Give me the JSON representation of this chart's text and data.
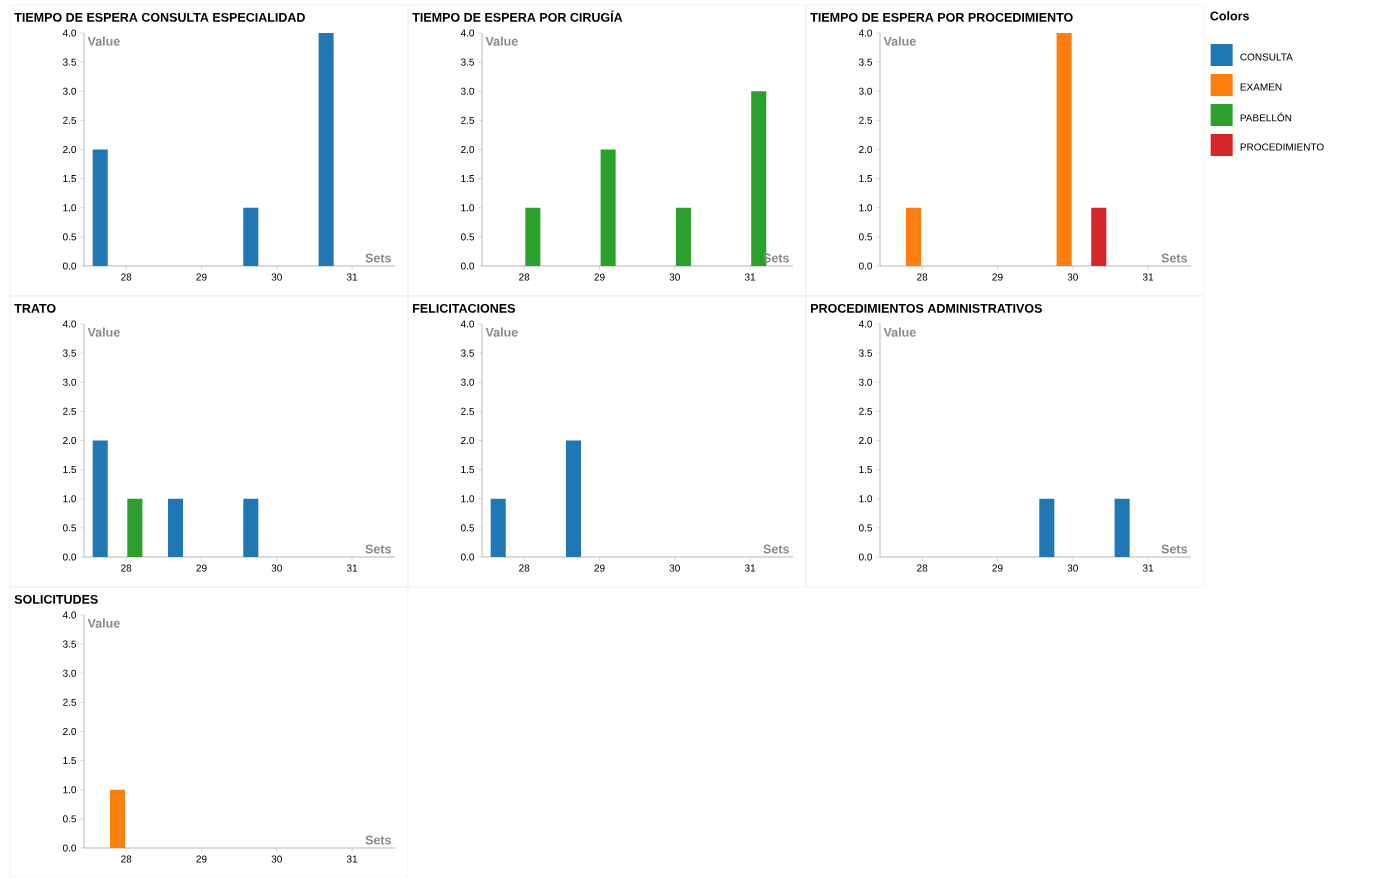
{
  "chart_data": [
    {
      "type": "bar",
      "title": "TIEMPO DE ESPERA CONSULTA ESPECIALIDAD",
      "xlabel": "Sets",
      "ylabel": "Value",
      "categories": [
        "28",
        "29",
        "30",
        "31"
      ],
      "ylim": [
        0,
        4
      ],
      "yticks": [
        {
          "value": 0,
          "label": "0.0"
        },
        {
          "value": 0.5,
          "label": "0.5"
        },
        {
          "value": 1,
          "label": "1.0"
        },
        {
          "value": 1.5,
          "label": "1.5"
        },
        {
          "value": 2,
          "label": "2.0"
        },
        {
          "value": 2.5,
          "label": "2.5"
        },
        {
          "value": 3,
          "label": "3.0"
        },
        {
          "value": 3.5,
          "label": "3.5"
        },
        {
          "value": 4,
          "label": "4.0"
        }
      ],
      "series": [
        {
          "color": "#1f77b4",
          "values": [
            2,
            null,
            1,
            4
          ]
        },
        {
          "color": "#ff7f0e",
          "values": [
            null,
            null,
            null,
            null
          ]
        },
        {
          "color": "#2ca02c",
          "values": [
            null,
            null,
            null,
            null
          ]
        },
        {
          "color": "#d62728",
          "values": [
            null,
            null,
            null,
            null
          ]
        }
      ]
    },
    {
      "type": "bar",
      "title": "TIEMPO DE ESPERA POR CIRUGÍA",
      "xlabel": "Sets",
      "ylabel": "Value",
      "categories": [
        "28",
        "29",
        "30",
        "31"
      ],
      "ylim": [
        0,
        4
      ],
      "yticks": [
        {
          "value": 0,
          "label": "0.0"
        },
        {
          "value": 0.5,
          "label": "0.5"
        },
        {
          "value": 1,
          "label": "1.0"
        },
        {
          "value": 1.5,
          "label": "1.5"
        },
        {
          "value": 2,
          "label": "2.0"
        },
        {
          "value": 2.5,
          "label": "2.5"
        },
        {
          "value": 3,
          "label": "3.0"
        },
        {
          "value": 3.5,
          "label": "3.5"
        },
        {
          "value": 4,
          "label": "4.0"
        }
      ],
      "series": [
        {
          "color": "#1f77b4",
          "values": [
            null,
            null,
            null,
            null
          ]
        },
        {
          "color": "#ff7f0e",
          "values": [
            null,
            null,
            null,
            null
          ]
        },
        {
          "color": "#2ca02c",
          "values": [
            1,
            2,
            1,
            3
          ]
        },
        {
          "color": "#d62728",
          "values": [
            null,
            null,
            null,
            null
          ]
        }
      ]
    },
    {
      "type": "bar",
      "title": "TIEMPO DE ESPERA POR PROCEDIMIENTO",
      "xlabel": "Sets",
      "ylabel": "Value",
      "categories": [
        "28",
        "29",
        "30",
        "31"
      ],
      "ylim": [
        0,
        4
      ],
      "yticks": [
        {
          "value": 0,
          "label": "0.0"
        },
        {
          "value": 0.5,
          "label": "0.5"
        },
        {
          "value": 1,
          "label": "1.0"
        },
        {
          "value": 1.5,
          "label": "1.5"
        },
        {
          "value": 2,
          "label": "2.0"
        },
        {
          "value": 2.5,
          "label": "2.5"
        },
        {
          "value": 3,
          "label": "3.0"
        },
        {
          "value": 3.5,
          "label": "3.5"
        },
        {
          "value": 4,
          "label": "4.0"
        }
      ],
      "legend": "right",
      "legend_title": "Colors",
      "series": [
        {
          "name": "CONSULTA",
          "color": "#1f77b4",
          "values": [
            null,
            null,
            null,
            null
          ]
        },
        {
          "name": "EXAMEN",
          "color": "#ff7f0e",
          "values": [
            1,
            null,
            4,
            null
          ]
        },
        {
          "name": "PABELLÓN",
          "color": "#2ca02c",
          "values": [
            null,
            null,
            null,
            null
          ]
        },
        {
          "name": "PROCEDIMIENTO",
          "color": "#d62728",
          "values": [
            null,
            null,
            1,
            null
          ]
        }
      ]
    },
    {
      "type": "bar",
      "title": "TRATO",
      "xlabel": "Sets",
      "ylabel": "Value",
      "categories": [
        "28",
        "29",
        "30",
        "31"
      ],
      "ylim": [
        0,
        4
      ],
      "yticks": [
        {
          "value": 0,
          "label": "0.0"
        },
        {
          "value": 0.5,
          "label": "0.5"
        },
        {
          "value": 1,
          "label": "1.0"
        },
        {
          "value": 1.5,
          "label": "1.5"
        },
        {
          "value": 2,
          "label": "2.0"
        },
        {
          "value": 2.5,
          "label": "2.5"
        },
        {
          "value": 3,
          "label": "3.0"
        },
        {
          "value": 3.5,
          "label": "3.5"
        },
        {
          "value": 4,
          "label": "4.0"
        }
      ],
      "series": [
        {
          "color": "#1f77b4",
          "values": [
            2,
            1,
            1,
            null
          ]
        },
        {
          "color": "#ff7f0e",
          "values": [
            null,
            null,
            null,
            null
          ]
        },
        {
          "color": "#2ca02c",
          "values": [
            1,
            null,
            null,
            null
          ]
        },
        {
          "color": "#d62728",
          "values": [
            null,
            null,
            null,
            null
          ]
        }
      ]
    },
    {
      "type": "bar",
      "title": "FELICITACIONES",
      "xlabel": "Sets",
      "ylabel": "Value",
      "categories": [
        "28",
        "29",
        "30",
        "31"
      ],
      "ylim": [
        0,
        4
      ],
      "yticks": [
        {
          "value": 0,
          "label": "0.0"
        },
        {
          "value": 0.5,
          "label": "0.5"
        },
        {
          "value": 1,
          "label": "1.0"
        },
        {
          "value": 1.5,
          "label": "1.5"
        },
        {
          "value": 2,
          "label": "2.0"
        },
        {
          "value": 2.5,
          "label": "2.5"
        },
        {
          "value": 3,
          "label": "3.0"
        },
        {
          "value": 3.5,
          "label": "3.5"
        },
        {
          "value": 4,
          "label": "4.0"
        }
      ],
      "series": [
        {
          "color": "#1f77b4",
          "values": [
            1,
            2,
            null,
            null
          ]
        },
        {
          "color": "#ff7f0e",
          "values": [
            null,
            null,
            null,
            null
          ]
        },
        {
          "color": "#2ca02c",
          "values": [
            null,
            null,
            null,
            null
          ]
        },
        {
          "color": "#d62728",
          "values": [
            null,
            null,
            null,
            null
          ]
        }
      ]
    },
    {
      "type": "bar",
      "title": "PROCEDIMIENTOS ADMINISTRATIVOS",
      "xlabel": "Sets",
      "ylabel": "Value",
      "categories": [
        "28",
        "29",
        "30",
        "31"
      ],
      "ylim": [
        0,
        4
      ],
      "yticks": [
        {
          "value": 0,
          "label": "0.0"
        },
        {
          "value": 0.5,
          "label": "0.5"
        },
        {
          "value": 1,
          "label": "1.0"
        },
        {
          "value": 1.5,
          "label": "1.5"
        },
        {
          "value": 2,
          "label": "2.0"
        },
        {
          "value": 2.5,
          "label": "2.5"
        },
        {
          "value": 3,
          "label": "3.0"
        },
        {
          "value": 3.5,
          "label": "3.5"
        },
        {
          "value": 4,
          "label": "4.0"
        }
      ],
      "series": [
        {
          "color": "#1f77b4",
          "values": [
            null,
            null,
            1,
            1
          ]
        },
        {
          "color": "#ff7f0e",
          "values": [
            null,
            null,
            null,
            null
          ]
        },
        {
          "color": "#2ca02c",
          "values": [
            null,
            null,
            null,
            null
          ]
        },
        {
          "color": "#d62728",
          "values": [
            null,
            null,
            null,
            null
          ]
        }
      ]
    },
    {
      "type": "bar",
      "title": "SOLICITUDES",
      "xlabel": "Sets",
      "ylabel": "Value",
      "categories": [
        "28",
        "29",
        "30",
        "31"
      ],
      "ylim": [
        0,
        4
      ],
      "yticks": [
        {
          "value": 0,
          "label": "0.0"
        },
        {
          "value": 0.5,
          "label": "0.5"
        },
        {
          "value": 1,
          "label": "1.0"
        },
        {
          "value": 1.5,
          "label": "1.5"
        },
        {
          "value": 2,
          "label": "2.0"
        },
        {
          "value": 2.5,
          "label": "2.5"
        },
        {
          "value": 3,
          "label": "3.0"
        },
        {
          "value": 3.5,
          "label": "3.5"
        },
        {
          "value": 4,
          "label": "4.0"
        }
      ],
      "series": [
        {
          "color": "#1f77b4",
          "values": [
            null,
            null,
            null,
            null
          ]
        },
        {
          "color": "#ff7f0e",
          "values": [
            1,
            null,
            null,
            null
          ]
        },
        {
          "color": "#2ca02c",
          "values": [
            null,
            null,
            null,
            null
          ]
        },
        {
          "color": "#d62728",
          "values": [
            null,
            null,
            null,
            null
          ]
        }
      ]
    }
  ]
}
